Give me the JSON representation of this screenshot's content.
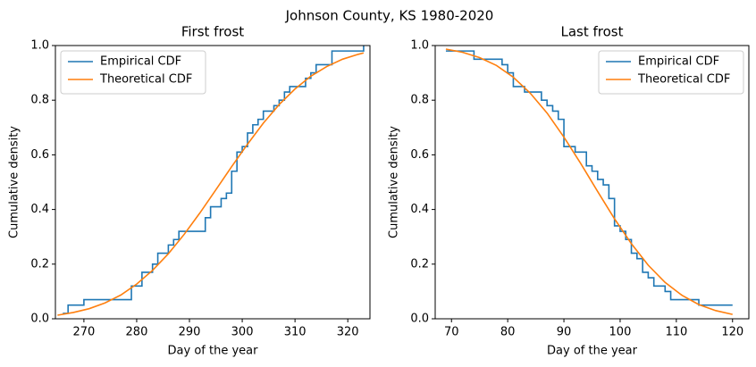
{
  "title": "Johnson County, KS 1980-2020",
  "chart_data": [
    {
      "type": "line",
      "title": "First frost",
      "x_label": "Day of the year",
      "y_label": "Cumulative density",
      "xlim": [
        264.6,
        324.2
      ],
      "xticks": [
        270,
        280,
        290,
        300,
        310,
        320
      ],
      "ylim": [
        0,
        1
      ],
      "yticks": [
        {
          "value": 0,
          "label": "0.0"
        },
        0.2,
        0.4,
        0.6,
        0.8,
        {
          "value": 1,
          "label": "1.0"
        }
      ],
      "legend": "upper left",
      "series": [
        {
          "name": "Empirical CDF",
          "color": "#1f77b4",
          "step": "post",
          "x": [
            266,
            267,
            270,
            279,
            281,
            283,
            284,
            286,
            287,
            288,
            293,
            294,
            296,
            297,
            298,
            299,
            300,
            301,
            302,
            303,
            304,
            306,
            307,
            308,
            309,
            312,
            313,
            314,
            317,
            323
          ],
          "values": [
            0.02,
            0.05,
            0.07,
            0.12,
            0.17,
            0.2,
            0.24,
            0.27,
            0.29,
            0.32,
            0.37,
            0.41,
            0.44,
            0.46,
            0.54,
            0.61,
            0.63,
            0.68,
            0.71,
            0.73,
            0.76,
            0.78,
            0.8,
            0.83,
            0.85,
            0.88,
            0.9,
            0.93,
            0.98,
            1
          ]
        },
        {
          "name": "Theoretical CDF",
          "color": "#ff7f0e",
          "x": [
            265,
            268,
            271,
            274,
            277,
            280,
            283,
            286,
            289,
            292,
            295,
            298,
            301,
            304,
            307,
            310,
            313,
            316,
            319,
            322,
            323
          ],
          "values": [
            0.013,
            0.023,
            0.037,
            0.058,
            0.087,
            0.127,
            0.177,
            0.238,
            0.309,
            0.388,
            0.472,
            0.557,
            0.639,
            0.716,
            0.784,
            0.841,
            0.888,
            0.923,
            0.95,
            0.968,
            0.973
          ]
        }
      ]
    },
    {
      "type": "line",
      "title": "Last frost",
      "x_label": "Day of the year",
      "y_label": "Cumulative density",
      "xlim": [
        67.1,
        122.9
      ],
      "xticks": [
        70,
        80,
        90,
        100,
        110,
        120
      ],
      "ylim": [
        0,
        1
      ],
      "yticks": [
        {
          "value": 0,
          "label": "0.0"
        },
        0.2,
        0.4,
        0.6,
        0.8,
        {
          "value": 1,
          "label": "1.0"
        }
      ],
      "legend": "upper right",
      "series": [
        {
          "name": "Empirical CDF",
          "color": "#1f77b4",
          "step": "post",
          "x": [
            69,
            74,
            79,
            80,
            81,
            83,
            86,
            87,
            88,
            89,
            90,
            92,
            94,
            95,
            96,
            97,
            98,
            99,
            100,
            101,
            102,
            103,
            104,
            105,
            106,
            108,
            109,
            114,
            120
          ],
          "values": [
            0.98,
            0.95,
            0.93,
            0.9,
            0.85,
            0.83,
            0.8,
            0.78,
            0.76,
            0.73,
            0.63,
            0.61,
            0.56,
            0.54,
            0.51,
            0.49,
            0.44,
            0.34,
            0.32,
            0.29,
            0.24,
            0.22,
            0.17,
            0.15,
            0.12,
            0.1,
            0.07,
            0.05,
            0.05
          ]
        },
        {
          "name": "Theoretical CDF",
          "color": "#ff7f0e",
          "x": [
            69,
            72,
            75,
            78,
            81,
            84,
            87,
            90,
            93,
            96,
            99,
            102,
            105,
            108,
            111,
            114,
            117,
            120
          ],
          "values": [
            0.987,
            0.975,
            0.956,
            0.927,
            0.884,
            0.826,
            0.753,
            0.665,
            0.568,
            0.466,
            0.366,
            0.275,
            0.196,
            0.133,
            0.086,
            0.052,
            0.03,
            0.016
          ]
        }
      ]
    }
  ]
}
